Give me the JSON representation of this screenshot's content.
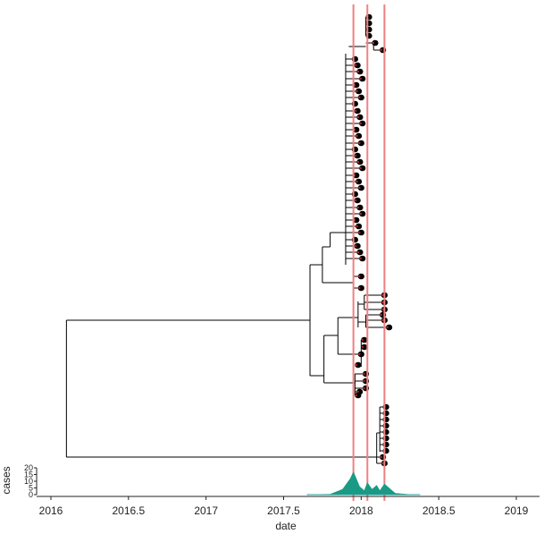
{
  "chart_data": {
    "type": "phylogenetic-tree-with-epicurve",
    "x_axis": {
      "label": "date",
      "ticks": [
        "2016",
        "2016.5",
        "2017",
        "2017.5",
        "2018",
        "2018.5",
        "2019"
      ],
      "tick_values": [
        2016,
        2016.5,
        2017,
        2017.5,
        2018,
        2018.5,
        2019
      ],
      "range": [
        2015.88,
        2019.16
      ]
    },
    "y_axis_epicurve": {
      "label": "cases",
      "ticks": [
        "0",
        "5",
        "10",
        "15",
        "20"
      ],
      "tick_values": [
        0,
        5,
        10,
        15,
        20
      ],
      "range": [
        0,
        22
      ]
    },
    "vertical_lines": [
      {
        "x": 2017.95
      },
      {
        "x": 2018.04
      },
      {
        "x": 2018.15
      }
    ],
    "tree": {
      "root_date": 2016.1,
      "nodes": [
        {
          "id": "R",
          "date": 2016.1
        },
        {
          "id": "A",
          "date": 2017.67,
          "parent": "R"
        },
        {
          "id": "B",
          "date": 2018.1,
          "parent": "R"
        },
        {
          "id": "A1",
          "date": 2017.75,
          "parent": "A"
        },
        {
          "id": "A2",
          "date": 2017.76,
          "parent": "A"
        },
        {
          "id": "A1a",
          "date": 2017.85,
          "parent": "A1"
        },
        {
          "id": "A1b",
          "date": 2017.92,
          "parent": "A1"
        },
        {
          "id": "A1c",
          "date": 2017.94,
          "parent": "A1"
        },
        {
          "id": "A1d",
          "date": 2017.98,
          "parent": "A1"
        },
        {
          "id": "A1e",
          "date": 2018.04,
          "parent": "A1"
        },
        {
          "id": "A2a",
          "date": 2017.85,
          "parent": "A2"
        },
        {
          "id": "A2b",
          "date": 2017.98,
          "parent": "A2"
        },
        {
          "id": "A2c",
          "date": 2018.0,
          "parent": "A2"
        },
        {
          "id": "A2d",
          "date": 2018.02,
          "parent": "A2"
        }
      ],
      "tip_count": 68,
      "tip_color": "#000000",
      "tip_accent_color": "#b22222"
    },
    "epicurve": {
      "x": [
        2017.65,
        2017.8,
        2017.88,
        2017.93,
        2017.95,
        2017.99,
        2018.02,
        2018.04,
        2018.07,
        2018.1,
        2018.12,
        2018.15,
        2018.18,
        2018.22,
        2018.3,
        2018.38
      ],
      "y": [
        0,
        0.3,
        4,
        12,
        17,
        6,
        3,
        9,
        4,
        7,
        3,
        8,
        5,
        1,
        0.2,
        0
      ],
      "fill_color": "#1a9a85",
      "baseline_color": "#5a9bd5"
    },
    "colors": {
      "branch": "#000000",
      "vline": "#f08080",
      "axis": "#222222"
    }
  }
}
